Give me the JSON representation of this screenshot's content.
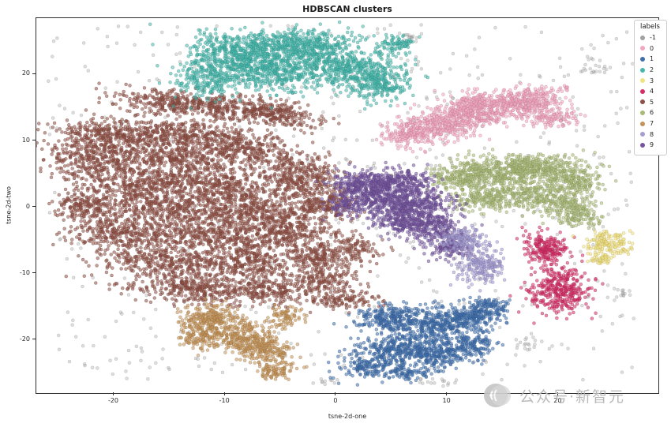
{
  "title": "HDBSCAN clusters",
  "axes": {
    "xlabel": "tsne-2d-one",
    "ylabel": "tsne-2d-two"
  },
  "legend": {
    "title": "labels",
    "items": [
      {
        "label": "-1",
        "color": "#a0a0a0"
      },
      {
        "label": "0",
        "color": "#f4a5c0"
      },
      {
        "label": "1",
        "color": "#3f6fad"
      },
      {
        "label": "2",
        "color": "#44b8ac"
      },
      {
        "label": "3",
        "color": "#f2e27e"
      },
      {
        "label": "4",
        "color": "#d62d66"
      },
      {
        "label": "5",
        "color": "#8f5045"
      },
      {
        "label": "6",
        "color": "#a9ba77"
      },
      {
        "label": "7",
        "color": "#c59357"
      },
      {
        "label": "8",
        "color": "#a49cd3"
      },
      {
        "label": "9",
        "color": "#75559f"
      }
    ]
  },
  "watermark": {
    "text": "公众号·新智元"
  },
  "chart_data": {
    "type": "scatter",
    "title": "HDBSCAN clusters",
    "xlabel": "tsne-2d-one",
    "ylabel": "tsne-2d-two",
    "xlim": [
      -27,
      29
    ],
    "ylim": [
      -28,
      28.5
    ],
    "x_ticks": [
      -20,
      -10,
      0,
      10,
      20
    ],
    "y_ticks": [
      -20,
      -10,
      0,
      10,
      20
    ],
    "grid": false,
    "legend_position": "upper right",
    "marker": {
      "size": 2,
      "alpha": 0.55
    },
    "series": [
      {
        "name": "-1",
        "color": "#a0a0a0",
        "alpha": 0.35,
        "uniform": {
          "n": 680,
          "range": [
            -26,
            27,
            -26,
            27.5
          ]
        },
        "blobs": [
          [
            6.5,
            25.5,
            0.4,
            0.4,
            0,
            15
          ],
          [
            23,
            20.8,
            0.7,
            0.7,
            0,
            20
          ],
          [
            25.5,
            -13,
            0.5,
            0.5,
            0,
            12
          ],
          [
            17,
            -20.5,
            0.8,
            0.5,
            0,
            15
          ],
          [
            9,
            -26.3,
            1.2,
            0.3,
            0,
            15
          ],
          [
            -1,
            -26,
            0.8,
            0.3,
            0,
            10
          ]
        ]
      },
      {
        "name": "5",
        "color": "#8f5045",
        "blobs": [
          [
            -13,
            15.5,
            3.5,
            1.0,
            -8,
            450
          ],
          [
            -5.5,
            14,
            2.0,
            1.0,
            -15,
            250
          ],
          [
            -20,
            11,
            2.5,
            1.2,
            -5,
            350
          ],
          [
            -13,
            11,
            3.0,
            1.0,
            -8,
            300
          ],
          [
            -22,
            7.5,
            2.0,
            1.5,
            0,
            300
          ],
          [
            -15,
            7.5,
            3.0,
            1.2,
            -10,
            350
          ],
          [
            -8,
            8.5,
            2.5,
            1.2,
            -15,
            300
          ],
          [
            -18,
            3.5,
            3.0,
            1.5,
            -5,
            400
          ],
          [
            -10,
            3,
            3.5,
            1.5,
            -10,
            450
          ],
          [
            -3,
            4.5,
            2.0,
            1.5,
            -20,
            300
          ],
          [
            -22.5,
            0,
            1.5,
            1.2,
            0,
            200
          ],
          [
            -15,
            -0.5,
            3.0,
            1.2,
            -5,
            350
          ],
          [
            -7,
            -1,
            3.0,
            1.5,
            -10,
            400
          ],
          [
            -1,
            0.5,
            1.5,
            1.2,
            0,
            200
          ],
          [
            -19,
            -4,
            2.5,
            1.2,
            -5,
            300
          ],
          [
            -11,
            -4.5,
            3.0,
            1.2,
            -8,
            350
          ],
          [
            -4.5,
            -4,
            2.0,
            1.0,
            0,
            220
          ],
          [
            -16,
            -8,
            3.0,
            1.2,
            -5,
            350
          ],
          [
            -8,
            -8.5,
            2.5,
            1.2,
            -8,
            300
          ],
          [
            -2,
            -7.5,
            1.5,
            1.0,
            0,
            180
          ],
          [
            -13,
            -12,
            3.0,
            1.2,
            -5,
            350
          ],
          [
            -6,
            -12.5,
            2.0,
            1.0,
            0,
            220
          ],
          [
            -1,
            -11,
            1.5,
            1.0,
            0,
            150
          ],
          [
            0.5,
            -14,
            1.5,
            0.8,
            0,
            120
          ],
          [
            1.5,
            -6.5,
            1.2,
            1.0,
            0,
            120
          ]
        ]
      },
      {
        "name": "2",
        "color": "#44b8ac",
        "blobs": [
          [
            -9,
            23,
            2.2,
            1.5,
            -10,
            450
          ],
          [
            -3.5,
            24.5,
            2.5,
            1.2,
            0,
            450
          ],
          [
            -5.5,
            20.5,
            3.0,
            1.5,
            -5,
            500
          ],
          [
            1,
            21.5,
            2.5,
            1.5,
            -15,
            400
          ],
          [
            3.5,
            18.5,
            1.5,
            1.2,
            0,
            220
          ],
          [
            -11.5,
            19.5,
            1.5,
            1.5,
            0,
            200
          ],
          [
            5.5,
            24.5,
            0.8,
            0.8,
            0,
            80
          ]
        ]
      },
      {
        "name": "0",
        "color": "#f4a5c0",
        "blobs": [
          [
            7,
            11.5,
            1.5,
            1.0,
            20,
            250
          ],
          [
            10.5,
            13,
            2.0,
            1.2,
            15,
            350
          ],
          [
            14,
            15,
            2.0,
            1.2,
            15,
            350
          ],
          [
            17.5,
            16,
            1.5,
            1.0,
            10,
            250
          ],
          [
            19,
            13.5,
            1.2,
            0.8,
            0,
            120
          ],
          [
            12,
            15.5,
            1.0,
            0.8,
            0,
            100
          ],
          [
            20.5,
            17.8,
            0.3,
            0.3,
            0,
            10
          ]
        ]
      },
      {
        "name": "6",
        "color": "#a9ba77",
        "blobs": [
          [
            11.5,
            4.5,
            1.5,
            1.2,
            10,
            250
          ],
          [
            15,
            5.5,
            2.0,
            1.2,
            10,
            300
          ],
          [
            18.5,
            6,
            2.0,
            1.0,
            5,
            280
          ],
          [
            21.5,
            4,
            1.2,
            1.0,
            0,
            180
          ],
          [
            17,
            2,
            2.0,
            1.0,
            -5,
            250
          ],
          [
            13.5,
            1,
            1.5,
            0.8,
            0,
            150
          ],
          [
            20.5,
            0.5,
            1.5,
            1.0,
            0,
            150
          ],
          [
            22,
            -1.5,
            1.0,
            0.8,
            0,
            100
          ]
        ]
      },
      {
        "name": "9",
        "color": "#75559f",
        "blobs": [
          [
            2.5,
            3.5,
            1.5,
            1.0,
            -10,
            250
          ],
          [
            5.5,
            3.8,
            1.5,
            1.0,
            0,
            250
          ],
          [
            4,
            1,
            2.0,
            1.0,
            -15,
            300
          ],
          [
            7.5,
            0.5,
            1.5,
            1.2,
            0,
            250
          ],
          [
            6,
            -2,
            1.5,
            1.0,
            -10,
            200
          ],
          [
            9,
            -3,
            1.2,
            1.2,
            0,
            200
          ],
          [
            10.3,
            -5.8,
            1.0,
            1.0,
            0,
            150
          ],
          [
            1,
            0,
            0.8,
            0.8,
            0,
            80
          ]
        ]
      },
      {
        "name": "8",
        "color": "#a49cd3",
        "blobs": [
          [
            11.3,
            -5,
            1.1,
            0.9,
            -10,
            170
          ],
          [
            13,
            -9,
            1.1,
            1.2,
            0,
            200
          ]
        ]
      },
      {
        "name": "4",
        "color": "#d62d66",
        "blobs": [
          [
            19,
            -6,
            1.0,
            1.2,
            0,
            200
          ],
          [
            20,
            -12.5,
            1.3,
            1.8,
            0,
            350
          ]
        ]
      },
      {
        "name": "3",
        "color": "#f2e27e",
        "blobs": [
          [
            24.5,
            -5.5,
            1.0,
            0.9,
            -15,
            160
          ],
          [
            23.8,
            -7.8,
            0.5,
            0.4,
            0,
            40
          ]
        ]
      },
      {
        "name": "7",
        "color": "#c59357",
        "blobs": [
          [
            -11.5,
            -16.5,
            1.3,
            1.0,
            0,
            200
          ],
          [
            -9,
            -19,
            1.6,
            1.2,
            -20,
            280
          ],
          [
            -6.5,
            -21.5,
            1.3,
            1.0,
            -20,
            220
          ],
          [
            -12.5,
            -19.5,
            0.9,
            0.9,
            0,
            120
          ],
          [
            -5.5,
            -24.5,
            0.9,
            0.7,
            0,
            90
          ],
          [
            -4.5,
            -16.5,
            0.8,
            0.7,
            0,
            80
          ]
        ]
      },
      {
        "name": "1",
        "color": "#3f6fad",
        "blobs": [
          [
            5,
            -16.5,
            1.5,
            1.0,
            10,
            220
          ],
          [
            8.5,
            -18,
            2.0,
            1.3,
            0,
            350
          ],
          [
            12,
            -16.5,
            1.5,
            1.0,
            10,
            220
          ],
          [
            14,
            -15,
            0.9,
            0.8,
            0,
            100
          ],
          [
            5.5,
            -21.5,
            1.8,
            1.2,
            -10,
            280
          ],
          [
            9.5,
            -22,
            1.8,
            1.2,
            0,
            250
          ],
          [
            3,
            -24,
            1.5,
            0.9,
            0,
            160
          ],
          [
            12.5,
            -20.5,
            1.0,
            0.8,
            0,
            100
          ],
          [
            6.5,
            -25,
            1.0,
            0.6,
            0,
            80
          ]
        ]
      }
    ]
  }
}
